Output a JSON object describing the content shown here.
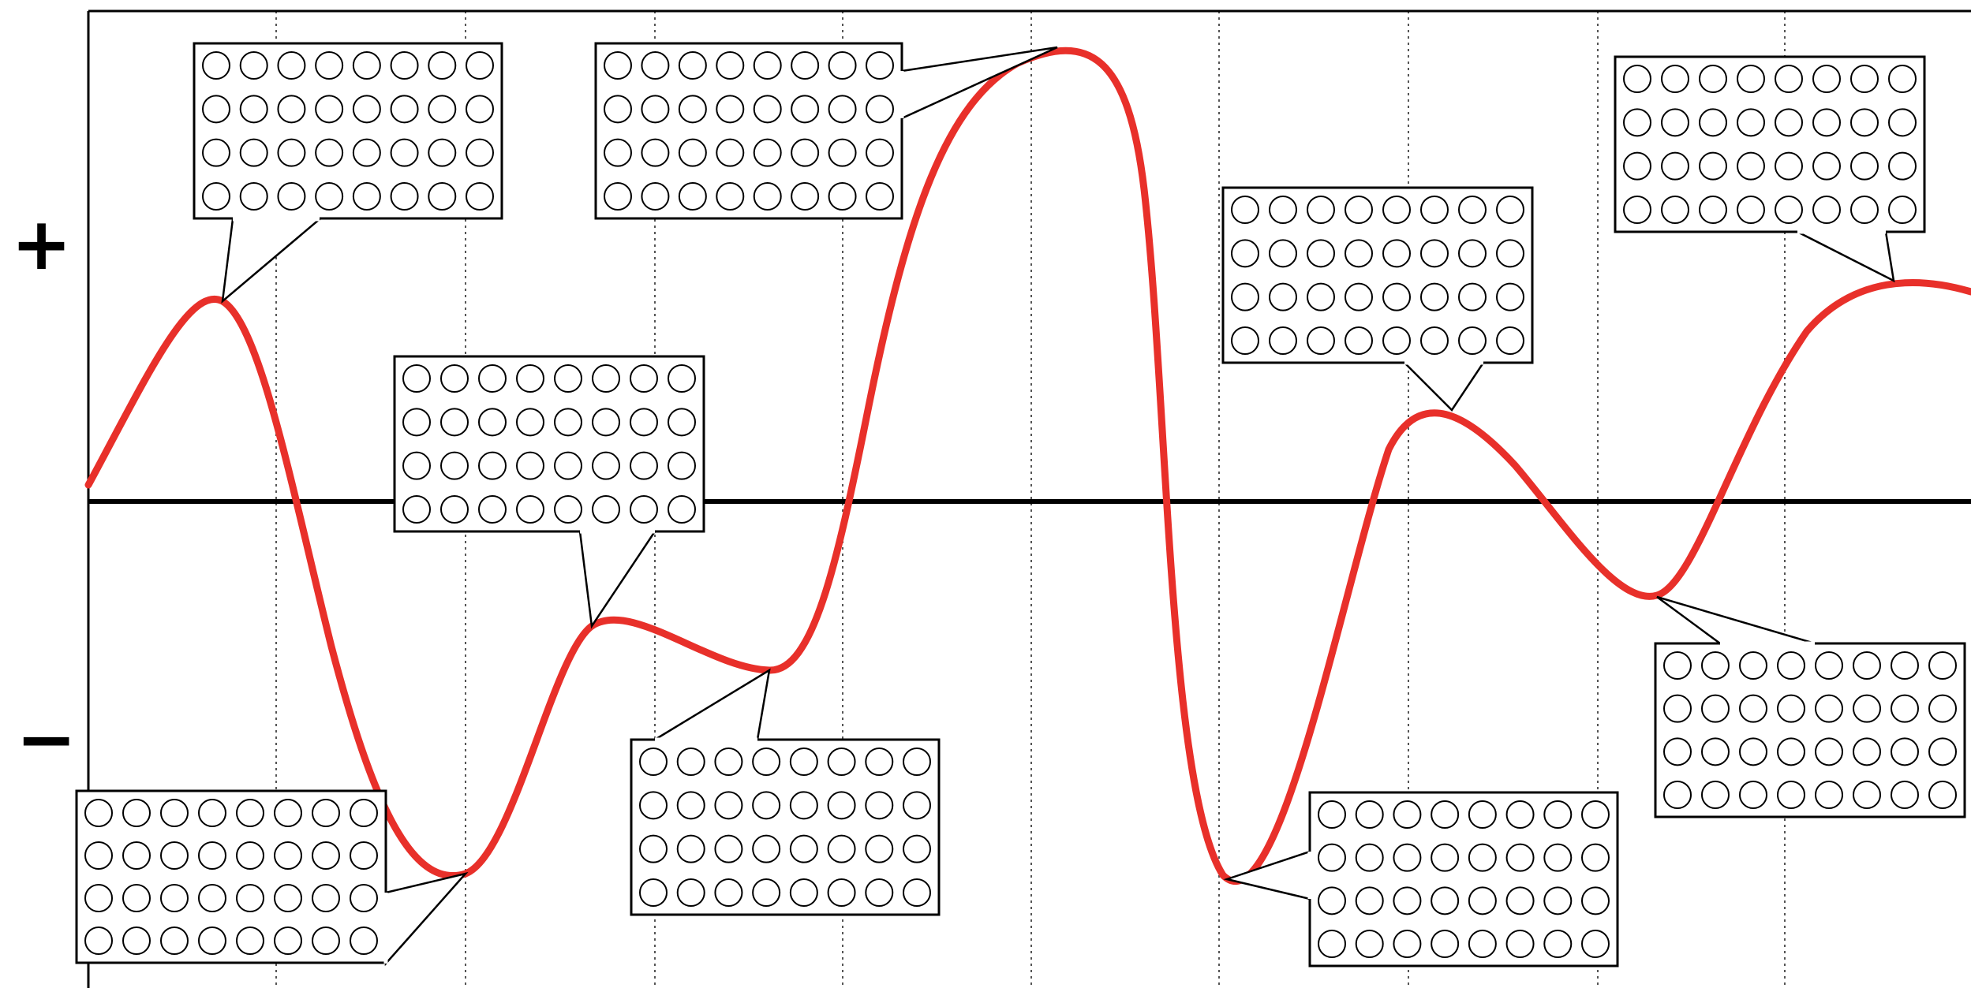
{
  "labels": {
    "positive": "+",
    "negative": "−"
  },
  "colors": {
    "curve": "#e8302a",
    "axis": "#000000",
    "grid": "#555555",
    "box_border": "#000000",
    "circle": "#000000"
  },
  "callouts": [
    {
      "id": "peak-1",
      "rows": 4,
      "cols": 8
    },
    {
      "id": "trough-1",
      "rows": 4,
      "cols": 8
    },
    {
      "id": "local-max-1",
      "rows": 4,
      "cols": 8
    },
    {
      "id": "local-min-1",
      "rows": 4,
      "cols": 8
    },
    {
      "id": "global-max",
      "rows": 4,
      "cols": 8
    },
    {
      "id": "global-min",
      "rows": 4,
      "cols": 8
    },
    {
      "id": "peak-2",
      "rows": 4,
      "cols": 8
    },
    {
      "id": "trough-2",
      "rows": 4,
      "cols": 8
    },
    {
      "id": "peak-3",
      "rows": 4,
      "cols": 8
    }
  ]
}
